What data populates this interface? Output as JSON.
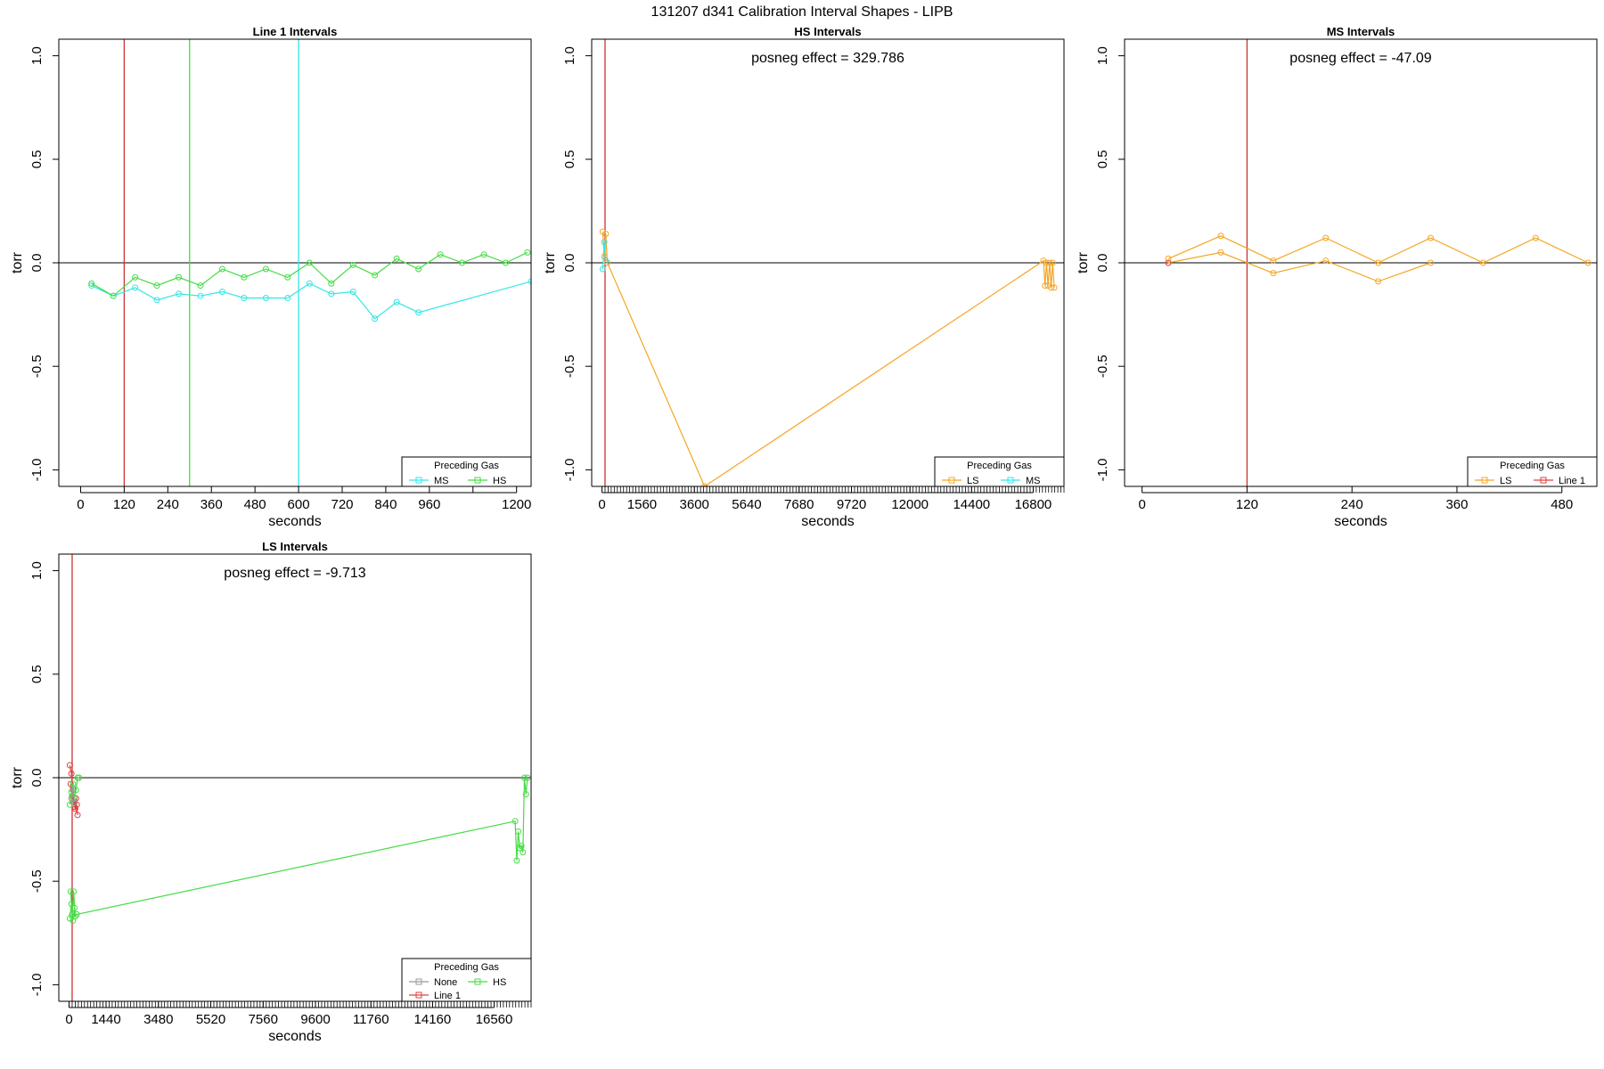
{
  "suptitle": "131207   d341   Calibration Interval Shapes - LIPB",
  "colors": {
    "axis": "#000000",
    "zero_line": "#000000"
  },
  "chart_data": [
    {
      "type": "line",
      "title": "Line 1 Intervals",
      "xlabel": "seconds",
      "ylabel": "torr",
      "xlim": [
        -60,
        1240
      ],
      "ylim": [
        -1.08,
        1.08
      ],
      "xticks": [
        0,
        120,
        240,
        360,
        480,
        600,
        720,
        840,
        960,
        1200
      ],
      "xtick_labels": [
        "0",
        "120",
        "240",
        "360",
        "480",
        "600",
        "720",
        "840",
        "960",
        "1200"
      ],
      "minor_xticks": [
        1080
      ],
      "yticks": [
        -1.0,
        -0.5,
        0.0,
        0.5,
        1.0
      ],
      "ytick_labels": [
        "-1.0",
        "-0.5",
        "0.0",
        "0.5",
        "1.0"
      ],
      "annotation": "",
      "vlines": [
        {
          "x": 120,
          "color": "#cc3333"
        },
        {
          "x": 300,
          "color": "#44dd44"
        },
        {
          "x": 600,
          "color": "#33e6e6"
        }
      ],
      "legend": {
        "title": "Preceding Gas",
        "position": "bottom-right",
        "columns": 2,
        "entries": [
          {
            "label": "MS",
            "color": "#33e6e6"
          },
          {
            "label": "HS",
            "color": "#44dd44"
          }
        ]
      },
      "series": [
        {
          "name": "MS",
          "color": "#33e6e6",
          "points": [
            [
              30,
              -0.11
            ],
            [
              90,
              -0.16
            ],
            [
              150,
              -0.12
            ],
            [
              210,
              -0.18
            ],
            [
              270,
              -0.15
            ],
            [
              330,
              -0.16
            ],
            [
              390,
              -0.14
            ],
            [
              450,
              -0.17
            ],
            [
              510,
              -0.17
            ],
            [
              570,
              -0.17
            ],
            [
              630,
              -0.1
            ],
            [
              690,
              -0.15
            ],
            [
              750,
              -0.14
            ],
            [
              810,
              -0.27
            ],
            [
              870,
              -0.19
            ],
            [
              930,
              -0.24
            ],
            [
              1240,
              -0.09
            ]
          ]
        },
        {
          "name": "HS",
          "color": "#44dd44",
          "points": [
            [
              30,
              -0.1
            ],
            [
              90,
              -0.16
            ],
            [
              150,
              -0.07
            ],
            [
              210,
              -0.11
            ],
            [
              270,
              -0.07
            ],
            [
              330,
              -0.11
            ],
            [
              390,
              -0.03
            ],
            [
              450,
              -0.07
            ],
            [
              510,
              -0.03
            ],
            [
              570,
              -0.07
            ],
            [
              630,
              0.0
            ],
            [
              690,
              -0.1
            ],
            [
              750,
              -0.01
            ],
            [
              810,
              -0.06
            ],
            [
              870,
              0.02
            ],
            [
              930,
              -0.03
            ],
            [
              990,
              0.04
            ],
            [
              1050,
              0.0
            ],
            [
              1110,
              0.04
            ],
            [
              1170,
              0.0
            ],
            [
              1230,
              0.05
            ]
          ]
        }
      ]
    },
    {
      "type": "line",
      "title": "HS Intervals",
      "xlabel": "seconds",
      "ylabel": "torr",
      "xlim": [
        -400,
        18000
      ],
      "ylim": [
        -1.08,
        1.08
      ],
      "xticks": [
        0,
        1560,
        3600,
        5640,
        7680,
        9720,
        12000,
        14400,
        16800
      ],
      "xtick_labels": [
        "0",
        "1560",
        "3600",
        "5640",
        "7680",
        "9720",
        "12000",
        "14400",
        "16800"
      ],
      "minor_tick_step": 120,
      "yticks": [
        -1.0,
        -0.5,
        0.0,
        0.5,
        1.0
      ],
      "ytick_labels": [
        "-1.0",
        "-0.5",
        "0.0",
        "0.5",
        "1.0"
      ],
      "annotation": "posneg effect = 329.786",
      "vlines": [
        {
          "x": 120,
          "color": "#cc3333"
        }
      ],
      "legend": {
        "title": "Preceding Gas",
        "position": "bottom-right",
        "columns": 2,
        "entries": [
          {
            "label": "LS",
            "color": "#f5a623"
          },
          {
            "label": "MS",
            "color": "#33e6e6"
          }
        ]
      },
      "series": [
        {
          "name": "LS",
          "color": "#f5a623",
          "points": [
            [
              30,
              0.15
            ],
            [
              90,
              0.03
            ],
            [
              150,
              0.14
            ],
            [
              210,
              0.0
            ],
            [
              4000,
              -1.08
            ],
            [
              17200,
              0.01
            ],
            [
              17260,
              -0.11
            ],
            [
              17320,
              0.0
            ],
            [
              17380,
              -0.11
            ],
            [
              17440,
              0.0
            ],
            [
              17500,
              -0.12
            ],
            [
              17560,
              0.0
            ],
            [
              17620,
              -0.12
            ]
          ]
        },
        {
          "name": "MS",
          "color": "#33e6e6",
          "points": [
            [
              30,
              -0.03
            ],
            [
              90,
              0.1
            ],
            [
              150,
              0.01
            ]
          ]
        }
      ]
    },
    {
      "type": "line",
      "title": "MS Intervals",
      "xlabel": "seconds",
      "ylabel": "torr",
      "xlim": [
        -20,
        520
      ],
      "ylim": [
        -1.08,
        1.08
      ],
      "xticks": [
        0,
        120,
        240,
        360,
        480
      ],
      "xtick_labels": [
        "0",
        "120",
        "240",
        "360",
        "480"
      ],
      "yticks": [
        -1.0,
        -0.5,
        0.0,
        0.5,
        1.0
      ],
      "ytick_labels": [
        "-1.0",
        "-0.5",
        "0.0",
        "0.5",
        "1.0"
      ],
      "annotation": "posneg effect = -47.09",
      "vlines": [
        {
          "x": 120,
          "color": "#cc3333"
        }
      ],
      "legend": {
        "title": "Preceding Gas",
        "position": "bottom-right",
        "columns": 2,
        "entries": [
          {
            "label": "LS",
            "color": "#f5a623"
          },
          {
            "label": "Line 1",
            "color": "#e04040"
          }
        ]
      },
      "series": [
        {
          "name": "LS",
          "color": "#f5a623",
          "points": [
            [
              30,
              0.02
            ],
            [
              90,
              0.13
            ],
            [
              150,
              0.01
            ],
            [
              210,
              0.12
            ],
            [
              270,
              0.0
            ],
            [
              330,
              0.12
            ],
            [
              390,
              0.0
            ],
            [
              450,
              0.12
            ],
            [
              510,
              0.0
            ]
          ]
        },
        {
          "name": "LS",
          "color": "#f5a623",
          "points": [
            [
              30,
              0.0
            ],
            [
              90,
              0.05
            ],
            [
              150,
              -0.05
            ],
            [
              210,
              0.01
            ],
            [
              270,
              -0.09
            ],
            [
              330,
              0.0
            ]
          ]
        },
        {
          "name": "Line 1",
          "color": "#e04040",
          "points": [
            [
              30,
              0.0
            ]
          ]
        }
      ]
    },
    {
      "type": "line",
      "title": "LS Intervals",
      "xlabel": "seconds",
      "ylabel": "torr",
      "xlim": [
        -400,
        18000
      ],
      "ylim": [
        -1.08,
        1.08
      ],
      "xticks": [
        0,
        1440,
        3480,
        5520,
        7560,
        9600,
        11760,
        14160,
        16560
      ],
      "xtick_labels": [
        "0",
        "1440",
        "3480",
        "5520",
        "7560",
        "9600",
        "11760",
        "14160",
        "16560"
      ],
      "minor_tick_step": 120,
      "yticks": [
        -1.0,
        -0.5,
        0.0,
        0.5,
        1.0
      ],
      "ytick_labels": [
        "-1.0",
        "-0.5",
        "0.0",
        "0.5",
        "1.0"
      ],
      "annotation": "posneg effect = -9.713",
      "vlines": [
        {
          "x": 120,
          "color": "#cc3333"
        }
      ],
      "legend": {
        "title": "Preceding Gas",
        "position": "bottom-right",
        "columns": 2,
        "entries": [
          {
            "label": "None",
            "color": "#999999"
          },
          {
            "label": "HS",
            "color": "#44dd44"
          },
          {
            "label": "Line 1",
            "color": "#e04040"
          }
        ]
      },
      "series": [
        {
          "name": "Line 1",
          "color": "#e04040",
          "points": [
            [
              30,
              0.06
            ],
            [
              90,
              0.02
            ],
            [
              150,
              -0.06
            ],
            [
              210,
              -0.14
            ],
            [
              270,
              -0.1
            ],
            [
              330,
              -0.18
            ],
            [
              60,
              -0.03
            ],
            [
              120,
              -0.09
            ],
            [
              180,
              -0.12
            ],
            [
              240,
              -0.15
            ],
            [
              300,
              -0.13
            ]
          ]
        },
        {
          "name": "HS",
          "color": "#44dd44",
          "points": [
            [
              30,
              -0.13
            ],
            [
              90,
              -0.07
            ],
            [
              150,
              -0.03
            ],
            [
              210,
              -0.1
            ],
            [
              270,
              -0.06
            ],
            [
              330,
              0.0
            ],
            [
              390,
              0.0
            ]
          ]
        },
        {
          "name": "HS",
          "color": "#44dd44",
          "points": [
            [
              60,
              -0.55
            ],
            [
              120,
              -0.66
            ],
            [
              180,
              -0.55
            ],
            [
              240,
              -0.67
            ],
            [
              300,
              -0.66
            ],
            [
              17380,
              -0.21
            ],
            [
              17440,
              -0.4
            ],
            [
              17500,
              -0.26
            ],
            [
              17560,
              -0.34
            ],
            [
              17620,
              -0.33
            ],
            [
              17680,
              -0.36
            ],
            [
              17740,
              0.0
            ],
            [
              17800,
              -0.08
            ],
            [
              17860,
              0.0
            ]
          ]
        },
        {
          "name": "HS",
          "color": "#44dd44",
          "points": [
            [
              30,
              -0.68
            ],
            [
              90,
              -0.61
            ],
            [
              150,
              -0.69
            ],
            [
              210,
              -0.63
            ]
          ]
        },
        {
          "name": "None",
          "color": "#999999",
          "points": [
            [
              90,
              -0.1
            ],
            [
              150,
              -0.05
            ],
            [
              210,
              -0.12
            ]
          ]
        }
      ]
    }
  ]
}
